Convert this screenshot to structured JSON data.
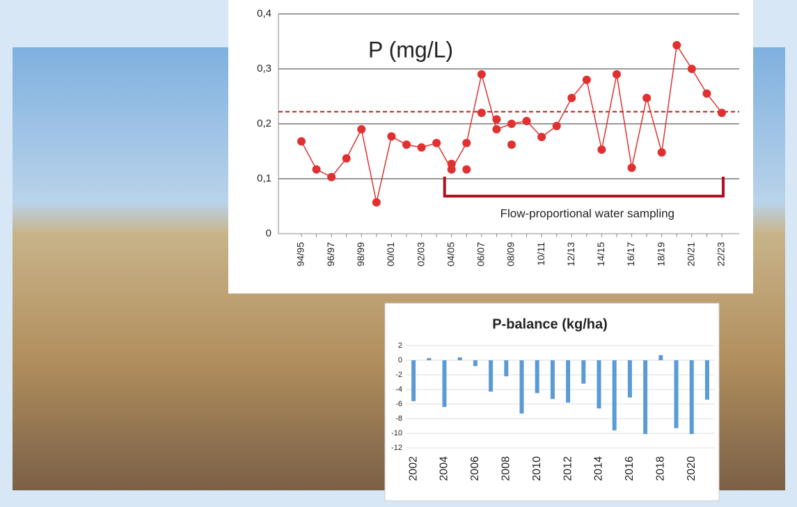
{
  "chart_data": [
    {
      "type": "line",
      "title": "P (mg/L)",
      "categories": [
        "94/95",
        null,
        "96/97",
        null,
        "98/99",
        null,
        "00/01",
        null,
        "02/03",
        null,
        "04/05",
        null,
        "06/07",
        null,
        "08/09",
        null,
        "10/11",
        null,
        "12/13",
        null,
        "14/15",
        null,
        "16/17",
        null,
        "18/19",
        null,
        "20/21",
        null,
        "22/23"
      ],
      "series": [
        {
          "color": "#e03030",
          "values": [
            0.168,
            0.117,
            0.103,
            0.137,
            0.19,
            0.057,
            0.177,
            0.162,
            0.157,
            0.165,
            0.117,
            0.165,
            0.29,
            0.19,
            0.2,
            0.205,
            0.176,
            0.196,
            0.247,
            0.28,
            0.153,
            0.29,
            0.12,
            0.247,
            0.148,
            0.343,
            0.3,
            0.255,
            0.22
          ]
        },
        {
          "color": "#e03030",
          "values": [
            null,
            null,
            null,
            null,
            null,
            null,
            null,
            null,
            null,
            null,
            0.127,
            0.117,
            0.22,
            0.208,
            0.162,
            null,
            null,
            null,
            null,
            null,
            null,
            null,
            null,
            null,
            null,
            null,
            null,
            null,
            null
          ]
        }
      ],
      "reference_line": {
        "value": 0.222,
        "color": "#b02020"
      },
      "bracket": {
        "label": "Flow-proportional water sampling",
        "from": 10,
        "to": 28,
        "color": "#b01020"
      },
      "ylim": [
        0,
        0.4
      ],
      "yticks": [
        0,
        {
          "value": 0.1,
          "label": "0,1"
        },
        {
          "value": 0.2,
          "label": "0,2"
        },
        {
          "value": 0.3,
          "label": "0,3"
        },
        {
          "value": 0.4,
          "label": "0,4"
        }
      ],
      "grid": true
    },
    {
      "type": "bar",
      "title": "P-balance (kg/ha)",
      "categories": [
        "2002",
        null,
        "2004",
        null,
        "2006",
        null,
        "2008",
        null,
        "2010",
        null,
        "2012",
        null,
        "2014",
        null,
        "2016",
        null,
        "2018",
        null,
        "2020",
        null
      ],
      "values": [
        -5.6,
        0.3,
        -6.4,
        0.4,
        -0.8,
        -4.3,
        -2.2,
        -7.3,
        -4.5,
        -5.3,
        -5.8,
        -3.2,
        -6.6,
        -9.6,
        -5.1,
        -10.1,
        0.7,
        -9.3,
        -10.1,
        -5.4
      ],
      "color": "#5b9bd5",
      "ylim": [
        -12,
        2
      ],
      "yticks": [
        -12,
        -10,
        -8,
        -6,
        -4,
        -2,
        0,
        2
      ],
      "grid": true
    }
  ]
}
